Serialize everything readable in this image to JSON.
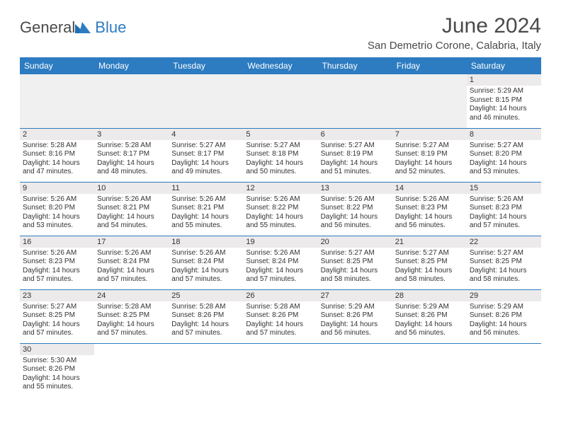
{
  "header": {
    "logo_general": "General",
    "logo_blue": "Blue",
    "month_title": "June 2024",
    "location": "San Demetrio Corone, Calabria, Italy"
  },
  "colors": {
    "header_bg": "#2d7cc1",
    "header_text": "#ffffff",
    "daynum_bg": "#eceaea",
    "border": "#2d7cc1",
    "logo_gray": "#4a4a4a",
    "logo_blue": "#2d7cc1"
  },
  "weekdays": [
    "Sunday",
    "Monday",
    "Tuesday",
    "Wednesday",
    "Thursday",
    "Friday",
    "Saturday"
  ],
  "weeks": [
    [
      null,
      null,
      null,
      null,
      null,
      null,
      {
        "num": "1",
        "sunrise": "Sunrise: 5:29 AM",
        "sunset": "Sunset: 8:15 PM",
        "daylight1": "Daylight: 14 hours",
        "daylight2": "and 46 minutes."
      }
    ],
    [
      {
        "num": "2",
        "sunrise": "Sunrise: 5:28 AM",
        "sunset": "Sunset: 8:16 PM",
        "daylight1": "Daylight: 14 hours",
        "daylight2": "and 47 minutes."
      },
      {
        "num": "3",
        "sunrise": "Sunrise: 5:28 AM",
        "sunset": "Sunset: 8:17 PM",
        "daylight1": "Daylight: 14 hours",
        "daylight2": "and 48 minutes."
      },
      {
        "num": "4",
        "sunrise": "Sunrise: 5:27 AM",
        "sunset": "Sunset: 8:17 PM",
        "daylight1": "Daylight: 14 hours",
        "daylight2": "and 49 minutes."
      },
      {
        "num": "5",
        "sunrise": "Sunrise: 5:27 AM",
        "sunset": "Sunset: 8:18 PM",
        "daylight1": "Daylight: 14 hours",
        "daylight2": "and 50 minutes."
      },
      {
        "num": "6",
        "sunrise": "Sunrise: 5:27 AM",
        "sunset": "Sunset: 8:19 PM",
        "daylight1": "Daylight: 14 hours",
        "daylight2": "and 51 minutes."
      },
      {
        "num": "7",
        "sunrise": "Sunrise: 5:27 AM",
        "sunset": "Sunset: 8:19 PM",
        "daylight1": "Daylight: 14 hours",
        "daylight2": "and 52 minutes."
      },
      {
        "num": "8",
        "sunrise": "Sunrise: 5:27 AM",
        "sunset": "Sunset: 8:20 PM",
        "daylight1": "Daylight: 14 hours",
        "daylight2": "and 53 minutes."
      }
    ],
    [
      {
        "num": "9",
        "sunrise": "Sunrise: 5:26 AM",
        "sunset": "Sunset: 8:20 PM",
        "daylight1": "Daylight: 14 hours",
        "daylight2": "and 53 minutes."
      },
      {
        "num": "10",
        "sunrise": "Sunrise: 5:26 AM",
        "sunset": "Sunset: 8:21 PM",
        "daylight1": "Daylight: 14 hours",
        "daylight2": "and 54 minutes."
      },
      {
        "num": "11",
        "sunrise": "Sunrise: 5:26 AM",
        "sunset": "Sunset: 8:21 PM",
        "daylight1": "Daylight: 14 hours",
        "daylight2": "and 55 minutes."
      },
      {
        "num": "12",
        "sunrise": "Sunrise: 5:26 AM",
        "sunset": "Sunset: 8:22 PM",
        "daylight1": "Daylight: 14 hours",
        "daylight2": "and 55 minutes."
      },
      {
        "num": "13",
        "sunrise": "Sunrise: 5:26 AM",
        "sunset": "Sunset: 8:22 PM",
        "daylight1": "Daylight: 14 hours",
        "daylight2": "and 56 minutes."
      },
      {
        "num": "14",
        "sunrise": "Sunrise: 5:26 AM",
        "sunset": "Sunset: 8:23 PM",
        "daylight1": "Daylight: 14 hours",
        "daylight2": "and 56 minutes."
      },
      {
        "num": "15",
        "sunrise": "Sunrise: 5:26 AM",
        "sunset": "Sunset: 8:23 PM",
        "daylight1": "Daylight: 14 hours",
        "daylight2": "and 57 minutes."
      }
    ],
    [
      {
        "num": "16",
        "sunrise": "Sunrise: 5:26 AM",
        "sunset": "Sunset: 8:23 PM",
        "daylight1": "Daylight: 14 hours",
        "daylight2": "and 57 minutes."
      },
      {
        "num": "17",
        "sunrise": "Sunrise: 5:26 AM",
        "sunset": "Sunset: 8:24 PM",
        "daylight1": "Daylight: 14 hours",
        "daylight2": "and 57 minutes."
      },
      {
        "num": "18",
        "sunrise": "Sunrise: 5:26 AM",
        "sunset": "Sunset: 8:24 PM",
        "daylight1": "Daylight: 14 hours",
        "daylight2": "and 57 minutes."
      },
      {
        "num": "19",
        "sunrise": "Sunrise: 5:26 AM",
        "sunset": "Sunset: 8:24 PM",
        "daylight1": "Daylight: 14 hours",
        "daylight2": "and 57 minutes."
      },
      {
        "num": "20",
        "sunrise": "Sunrise: 5:27 AM",
        "sunset": "Sunset: 8:25 PM",
        "daylight1": "Daylight: 14 hours",
        "daylight2": "and 58 minutes."
      },
      {
        "num": "21",
        "sunrise": "Sunrise: 5:27 AM",
        "sunset": "Sunset: 8:25 PM",
        "daylight1": "Daylight: 14 hours",
        "daylight2": "and 58 minutes."
      },
      {
        "num": "22",
        "sunrise": "Sunrise: 5:27 AM",
        "sunset": "Sunset: 8:25 PM",
        "daylight1": "Daylight: 14 hours",
        "daylight2": "and 58 minutes."
      }
    ],
    [
      {
        "num": "23",
        "sunrise": "Sunrise: 5:27 AM",
        "sunset": "Sunset: 8:25 PM",
        "daylight1": "Daylight: 14 hours",
        "daylight2": "and 57 minutes."
      },
      {
        "num": "24",
        "sunrise": "Sunrise: 5:28 AM",
        "sunset": "Sunset: 8:25 PM",
        "daylight1": "Daylight: 14 hours",
        "daylight2": "and 57 minutes."
      },
      {
        "num": "25",
        "sunrise": "Sunrise: 5:28 AM",
        "sunset": "Sunset: 8:26 PM",
        "daylight1": "Daylight: 14 hours",
        "daylight2": "and 57 minutes."
      },
      {
        "num": "26",
        "sunrise": "Sunrise: 5:28 AM",
        "sunset": "Sunset: 8:26 PM",
        "daylight1": "Daylight: 14 hours",
        "daylight2": "and 57 minutes."
      },
      {
        "num": "27",
        "sunrise": "Sunrise: 5:29 AM",
        "sunset": "Sunset: 8:26 PM",
        "daylight1": "Daylight: 14 hours",
        "daylight2": "and 56 minutes."
      },
      {
        "num": "28",
        "sunrise": "Sunrise: 5:29 AM",
        "sunset": "Sunset: 8:26 PM",
        "daylight1": "Daylight: 14 hours",
        "daylight2": "and 56 minutes."
      },
      {
        "num": "29",
        "sunrise": "Sunrise: 5:29 AM",
        "sunset": "Sunset: 8:26 PM",
        "daylight1": "Daylight: 14 hours",
        "daylight2": "and 56 minutes."
      }
    ],
    [
      {
        "num": "30",
        "sunrise": "Sunrise: 5:30 AM",
        "sunset": "Sunset: 8:26 PM",
        "daylight1": "Daylight: 14 hours",
        "daylight2": "and 55 minutes."
      },
      null,
      null,
      null,
      null,
      null,
      null
    ]
  ]
}
